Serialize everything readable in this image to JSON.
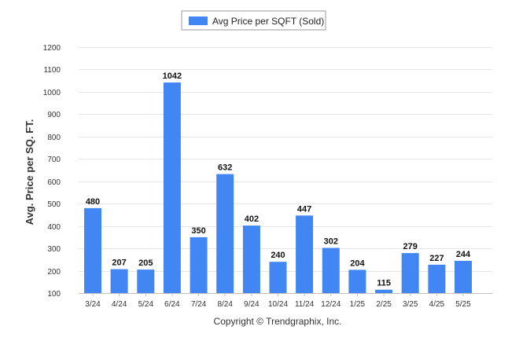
{
  "chart_data": {
    "type": "bar",
    "title": "",
    "xlabel": "",
    "ylabel": "Avg. Price per SQ. FT.",
    "ylim": [
      100,
      1200
    ],
    "yticks": [
      100,
      200,
      300,
      400,
      500,
      600,
      700,
      800,
      900,
      1000,
      1100,
      1200
    ],
    "grid": true,
    "legend_position": "top-center",
    "categories": [
      "3/24",
      "4/24",
      "5/24",
      "6/24",
      "7/24",
      "8/24",
      "9/24",
      "10/24",
      "11/24",
      "12/24",
      "1/25",
      "2/25",
      "3/25",
      "4/25",
      "5/25"
    ],
    "series": [
      {
        "name": "Avg Price per SQFT (Sold)",
        "color": "#4286f4",
        "values": [
          480,
          207,
          205,
          1042,
          350,
          632,
          402,
          240,
          447,
          302,
          204,
          115,
          279,
          227,
          244
        ]
      }
    ]
  },
  "footer": {
    "credit": "Copyright © Trendgraphix, Inc."
  }
}
